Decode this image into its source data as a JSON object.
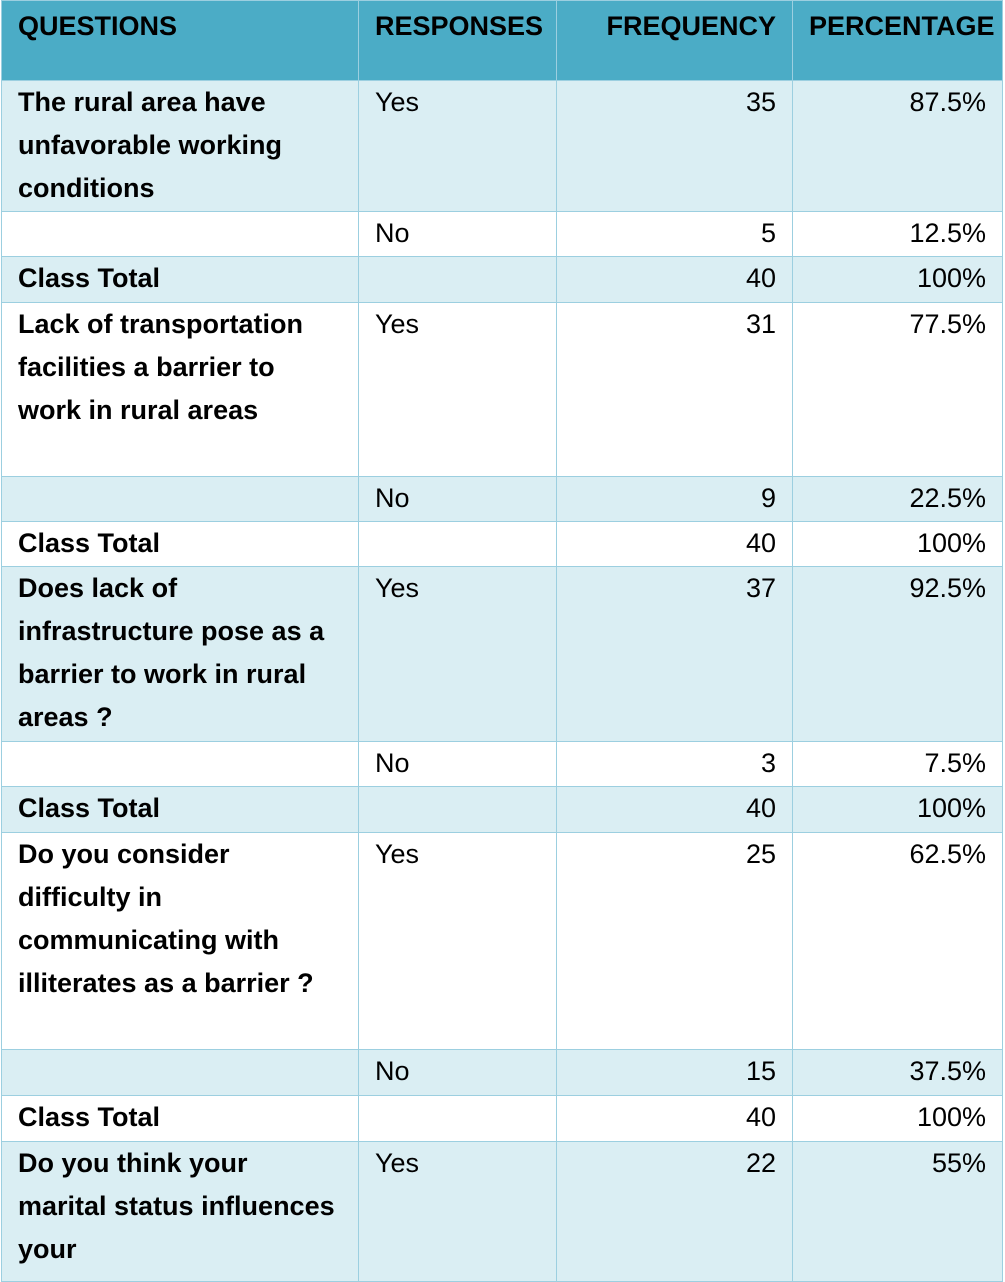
{
  "table": {
    "headers": [
      "QUESTIONS",
      "RESPONSES",
      "FREQUENCY",
      "PERCENTAGE"
    ],
    "rows": [
      {
        "question": " The rural area have unfavorable working conditions",
        "response": "Yes",
        "frequency": "35",
        "percentage": "87.5%"
      },
      {
        "question": "",
        "response": "No",
        "frequency": "5",
        "percentage": "12.5%"
      },
      {
        "question": "Class Total",
        "response": "",
        "frequency": "40",
        "percentage": "100%"
      },
      {
        "question": " Lack of transportation facilities a barrier to work in rural areas",
        "response": "Yes",
        "frequency": "31",
        "percentage": "77.5%"
      },
      {
        "question": "",
        "response": "No",
        "frequency": "9",
        "percentage": "22.5%"
      },
      {
        "question": "Class Total",
        "response": "",
        "frequency": "40",
        "percentage": "100%"
      },
      {
        "question": "Does lack of infrastructure pose as a barrier to work in rural areas ?",
        "response": "Yes",
        "frequency": "37",
        "percentage": "92.5%"
      },
      {
        "question": "",
        "response": "No",
        "frequency": "3",
        "percentage": "7.5%"
      },
      {
        "question": "Class Total",
        "response": "",
        "frequency": "40",
        "percentage": "100%"
      },
      {
        "question": "Do you consider difficulty in communicating with illiterates as a barrier ?",
        "response": "Yes",
        "frequency": "25",
        "percentage": "62.5%"
      },
      {
        "question": "",
        "response": "No",
        "frequency": "15",
        "percentage": "37.5%"
      },
      {
        "question": "Class Total",
        "response": "",
        "frequency": "40",
        "percentage": "100%"
      },
      {
        "question": "Do you think your marital status influences your",
        "response": "Yes",
        "frequency": "22",
        "percentage": "55%"
      }
    ]
  },
  "colors": {
    "header_bg": "#4bacc6",
    "band_bg": "#daeef3",
    "border": "#9ccfe0"
  }
}
